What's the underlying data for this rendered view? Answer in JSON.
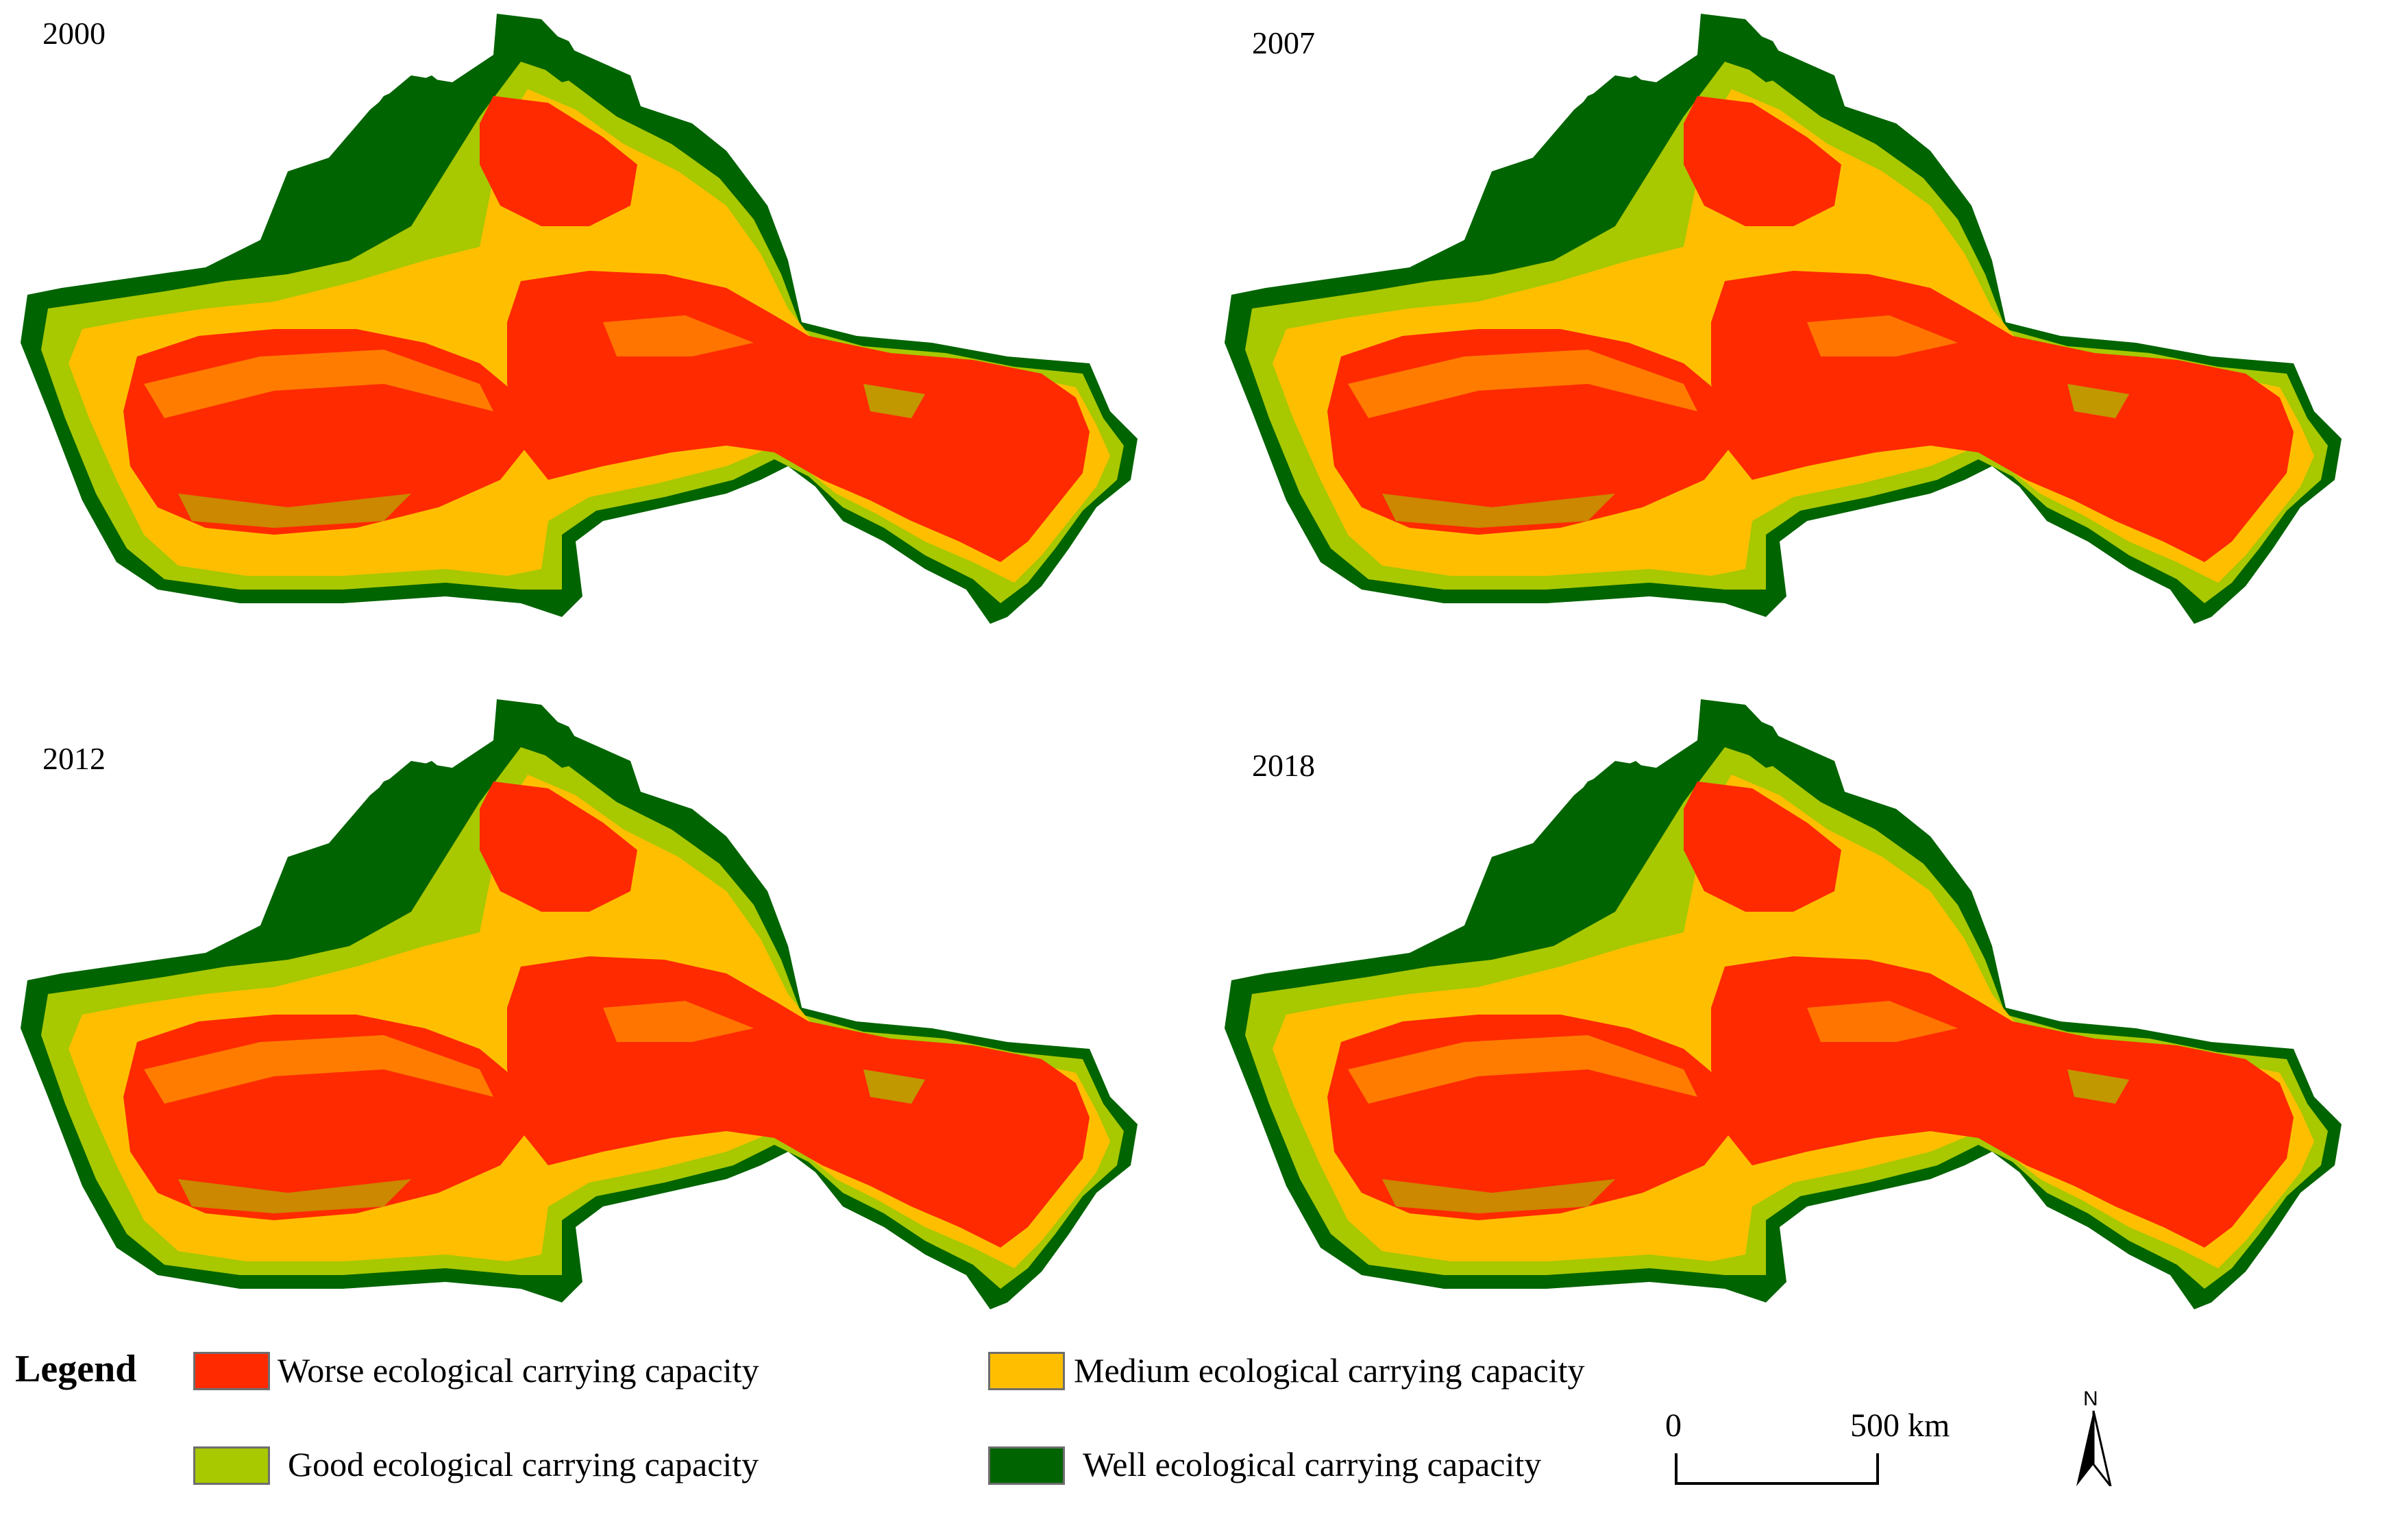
{
  "maps": [
    {
      "year": "2000"
    },
    {
      "year": "2007"
    },
    {
      "year": "2012"
    },
    {
      "year": "2018"
    }
  ],
  "legend": {
    "title": "Legend",
    "items": [
      {
        "label": "Worse ecological carrying capacity",
        "color": "#ff2a00"
      },
      {
        "label": "Medium ecological carrying capacity",
        "color": "#ffbf00"
      },
      {
        "label": "Good ecological carrying capacity",
        "color": "#a8c800"
      },
      {
        "label": "Well ecological carrying capacity",
        "color": "#006400"
      }
    ]
  },
  "scale_bar": {
    "start_label": "0",
    "end_label": "500 km"
  },
  "north_arrow": {
    "label": "N"
  }
}
